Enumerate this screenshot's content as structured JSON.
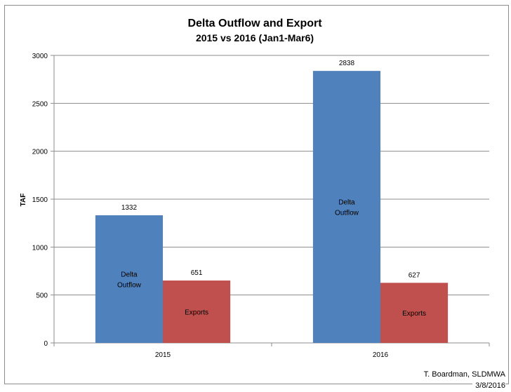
{
  "chart_data": {
    "type": "bar",
    "title": "Delta Outflow and Export",
    "subtitle": "2015 vs 2016 (Jan1-Mar6)",
    "ylabel": "TAF",
    "xlabel": "",
    "categories": [
      "2015",
      "2016"
    ],
    "ylim": [
      0,
      3000
    ],
    "yticks": [
      0,
      500,
      1000,
      1500,
      2000,
      2500,
      3000
    ],
    "grid": true,
    "legend": "none",
    "series": [
      {
        "name": "Delta Outflow",
        "values": [
          1332,
          2838
        ],
        "color": "#4f81bd",
        "inner_label": [
          "Delta",
          "Outflow"
        ]
      },
      {
        "name": "Exports",
        "values": [
          651,
          627
        ],
        "color": "#c0504d",
        "inner_label": [
          "Exports"
        ]
      }
    ]
  },
  "credit": {
    "author": "T. Boardman, SLDMWA",
    "date": "3/8/2016"
  }
}
